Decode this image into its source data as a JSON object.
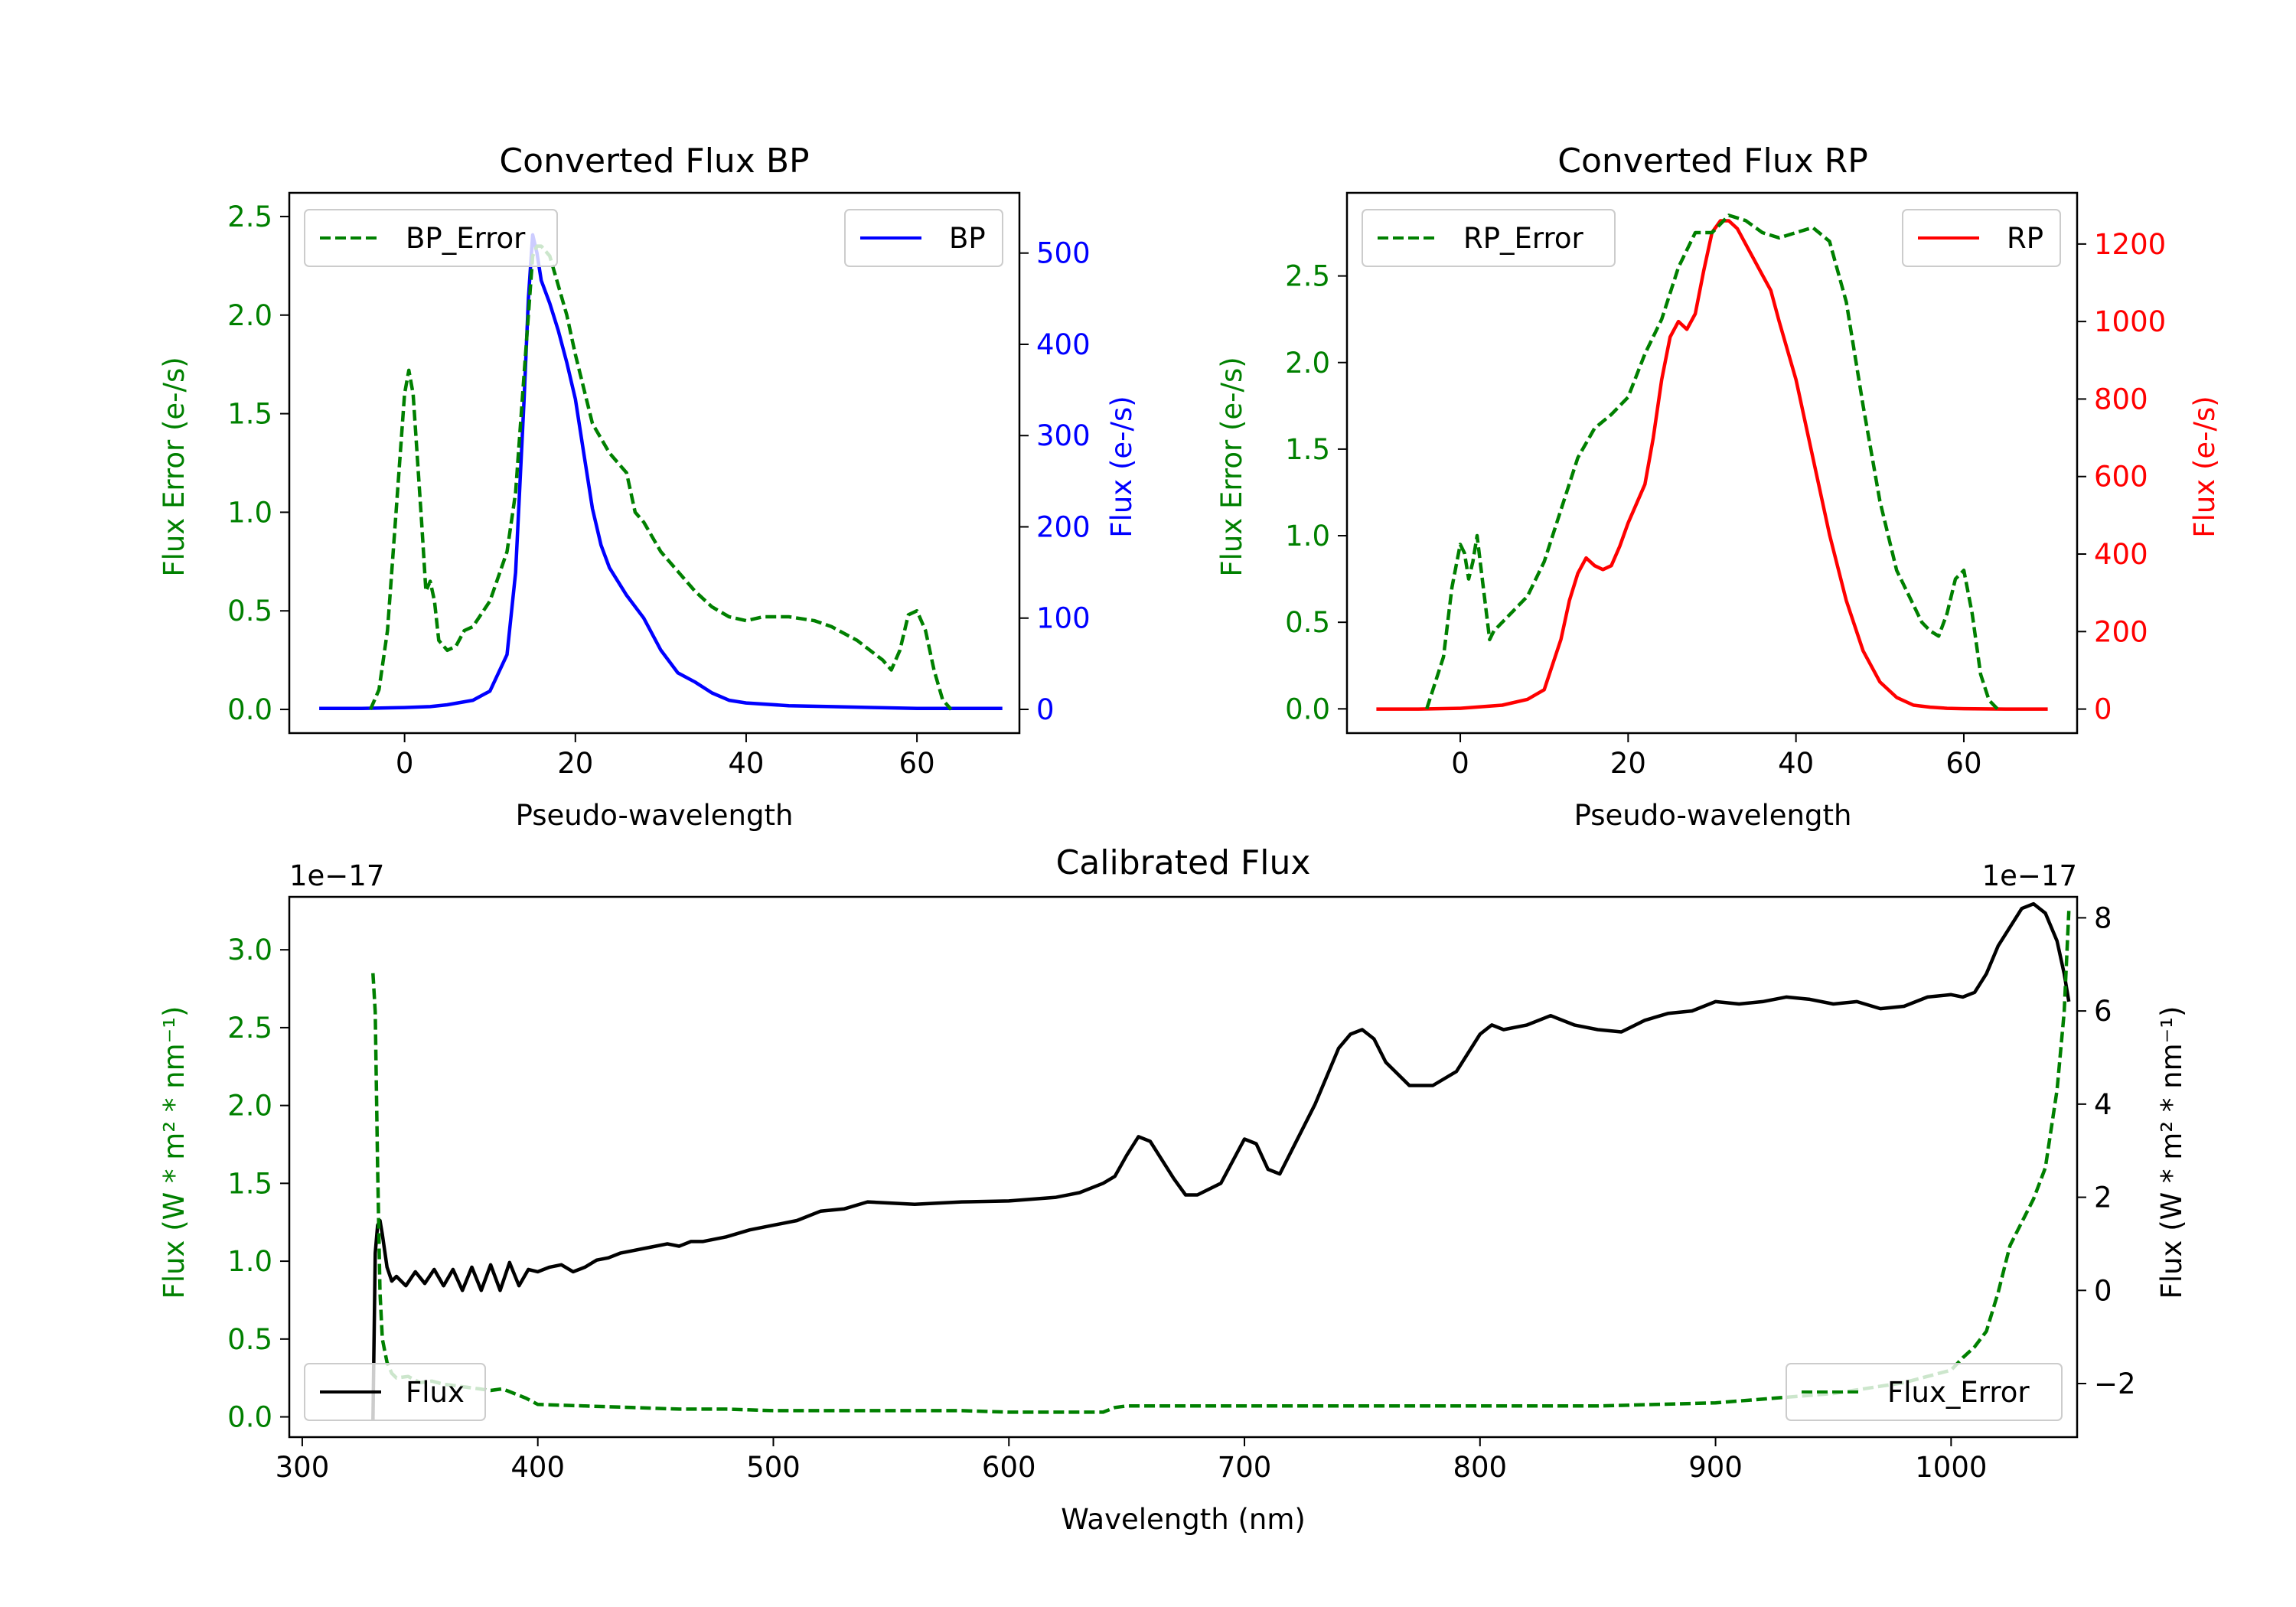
{
  "colors": {
    "bp": "#0000ff",
    "rp": "#ff0000",
    "error": "#008000",
    "flux": "#000000"
  },
  "chart_data": [
    {
      "id": "bp",
      "type": "line",
      "title": "Converted Flux BP",
      "xlabel": "Pseudo-wavelength",
      "ylabel_left": "Flux Error (e-/s)",
      "ylabel_right": "Flux (e-/s)",
      "xlim": [
        -13.5,
        72
      ],
      "ylim_left": [
        -0.12,
        2.62
      ],
      "ylim_right": [
        -26,
        566
      ],
      "xticks": [
        0,
        20,
        40,
        60
      ],
      "yticks_left": [
        0.0,
        0.5,
        1.0,
        1.5,
        2.0,
        2.5
      ],
      "yticks_right": [
        0,
        100,
        200,
        300,
        400,
        500
      ],
      "legend_left": {
        "label": "BP_Error",
        "position": "top-left"
      },
      "legend_right": {
        "label": "BP",
        "position": "top-right"
      },
      "series": [
        {
          "name": "BP",
          "axis": "right",
          "style": "solid",
          "color": "#0000ff",
          "x": [
            -10,
            -5,
            0,
            3,
            5,
            8,
            10,
            12,
            13,
            14,
            14.5,
            15,
            15.5,
            16,
            17,
            18,
            19,
            20,
            21,
            22,
            23,
            24,
            26,
            28,
            30,
            32,
            34,
            36,
            38,
            40,
            45,
            50,
            55,
            60,
            65,
            70
          ],
          "y": [
            1,
            1,
            2,
            3,
            5,
            10,
            20,
            60,
            150,
            340,
            450,
            520,
            500,
            470,
            445,
            415,
            380,
            340,
            280,
            220,
            180,
            155,
            125,
            100,
            65,
            40,
            30,
            18,
            10,
            7,
            4,
            3,
            2,
            1,
            1,
            1
          ]
        },
        {
          "name": "BP_Error",
          "axis": "left",
          "style": "dashed",
          "color": "#008000",
          "x": [
            -4,
            -3,
            -2,
            -1,
            0,
            0.5,
            1,
            2,
            2.5,
            3,
            3.5,
            4,
            5,
            6,
            7,
            8,
            10,
            12,
            13,
            14,
            14.5,
            15,
            15.5,
            16,
            17,
            18,
            19,
            20,
            22,
            24,
            26,
            27,
            28,
            30,
            32,
            34,
            36,
            38,
            40,
            42,
            45,
            48,
            50,
            53,
            56,
            57,
            58,
            59,
            60,
            61,
            62,
            63,
            64
          ],
          "y": [
            0.0,
            0.1,
            0.4,
            1.0,
            1.6,
            1.72,
            1.6,
            0.95,
            0.6,
            0.65,
            0.55,
            0.35,
            0.3,
            0.32,
            0.4,
            0.42,
            0.55,
            0.8,
            1.1,
            1.7,
            2.0,
            2.3,
            2.35,
            2.35,
            2.3,
            2.15,
            2.0,
            1.8,
            1.45,
            1.3,
            1.2,
            1.0,
            0.95,
            0.8,
            0.7,
            0.6,
            0.52,
            0.47,
            0.45,
            0.47,
            0.47,
            0.45,
            0.42,
            0.35,
            0.25,
            0.2,
            0.3,
            0.48,
            0.5,
            0.4,
            0.2,
            0.05,
            0.0
          ]
        }
      ]
    },
    {
      "id": "rp",
      "type": "line",
      "title": "Converted Flux RP",
      "xlabel": "Pseudo-wavelength",
      "ylabel_left": "Flux Error (e-/s)",
      "ylabel_right": "Flux (e-/s)",
      "xlim": [
        -13.5,
        73.5
      ],
      "ylim_left": [
        -0.14,
        2.98
      ],
      "ylim_right": [
        -62,
        1332
      ],
      "xticks": [
        0,
        20,
        40,
        60
      ],
      "yticks_left": [
        0.0,
        0.5,
        1.0,
        1.5,
        2.0,
        2.5
      ],
      "yticks_right": [
        0,
        200,
        400,
        600,
        800,
        1000,
        1200
      ],
      "legend_left": {
        "label": "RP_Error",
        "position": "top-left"
      },
      "legend_right": {
        "label": "RP",
        "position": "top-right"
      },
      "series": [
        {
          "name": "RP",
          "axis": "right",
          "style": "solid",
          "color": "#ff0000",
          "x": [
            -10,
            -5,
            0,
            5,
            8,
            10,
            12,
            13,
            14,
            15,
            16,
            17,
            18,
            19,
            20,
            21,
            22,
            23,
            24,
            25,
            26,
            27,
            28,
            29,
            30,
            31,
            32,
            33,
            34,
            35,
            36,
            37,
            38,
            40,
            42,
            44,
            46,
            48,
            50,
            52,
            54,
            56,
            58,
            60,
            65,
            70
          ],
          "y": [
            0,
            0,
            2,
            10,
            25,
            50,
            180,
            280,
            350,
            390,
            370,
            360,
            370,
            420,
            480,
            530,
            580,
            700,
            850,
            960,
            1000,
            980,
            1020,
            1130,
            1230,
            1260,
            1260,
            1240,
            1200,
            1160,
            1120,
            1080,
            1000,
            850,
            650,
            450,
            280,
            150,
            70,
            30,
            10,
            5,
            2,
            1,
            0,
            0
          ]
        },
        {
          "name": "RP_Error",
          "axis": "left",
          "style": "dashed",
          "color": "#008000",
          "x": [
            -4,
            -2,
            -1,
            0,
            0.5,
            1,
            1.5,
            2,
            2.5,
            3,
            3.5,
            4,
            5,
            6,
            8,
            10,
            12,
            14,
            16,
            18,
            20,
            22,
            24,
            26,
            27,
            28,
            30,
            32,
            34,
            36,
            38,
            40,
            42,
            44,
            46,
            48,
            50,
            52,
            54,
            55,
            56,
            57,
            58,
            59,
            60,
            61,
            62,
            63,
            64
          ],
          "y": [
            0.0,
            0.3,
            0.7,
            0.95,
            0.9,
            0.75,
            0.85,
            1.0,
            0.8,
            0.6,
            0.4,
            0.45,
            0.5,
            0.55,
            0.65,
            0.85,
            1.15,
            1.45,
            1.62,
            1.7,
            1.8,
            2.05,
            2.25,
            2.55,
            2.65,
            2.75,
            2.75,
            2.85,
            2.82,
            2.75,
            2.72,
            2.75,
            2.78,
            2.7,
            2.35,
            1.75,
            1.2,
            0.8,
            0.6,
            0.5,
            0.45,
            0.42,
            0.55,
            0.75,
            0.8,
            0.55,
            0.2,
            0.05,
            0.0
          ]
        }
      ]
    },
    {
      "id": "cal",
      "type": "line",
      "title": "Calibrated Flux",
      "xlabel": "Wavelength (nm)",
      "ylabel_left": "Flux (W * m² * nm⁻¹)",
      "ylabel_right": "Flux (W * m² * nm⁻¹)",
      "offset_left": "1e−17",
      "offset_right": "1e−17",
      "xlim": [
        294.5,
        1053.5
      ],
      "ylim_left": [
        -0.13,
        3.34
      ],
      "ylim_right": [
        -3.15,
        8.45
      ],
      "xticks": [
        300,
        400,
        500,
        600,
        700,
        800,
        900,
        1000
      ],
      "yticks_left": [
        0.0,
        0.5,
        1.0,
        1.5,
        2.0,
        2.5,
        3.0
      ],
      "yticks_right": [
        -2,
        0,
        2,
        4,
        6,
        8
      ],
      "yticks_right_labels": [
        "−2",
        "0",
        "2",
        "4",
        "6",
        "8"
      ],
      "legend_left": {
        "label": "Flux",
        "position": "bottom-left"
      },
      "legend_right": {
        "label": "Flux_Error",
        "position": "bottom-right"
      },
      "series": [
        {
          "name": "Flux",
          "axis": "right",
          "style": "solid",
          "color": "#000000",
          "x": [
            330,
            331,
            332,
            333,
            334,
            336,
            338,
            340,
            344,
            348,
            352,
            356,
            360,
            364,
            368,
            372,
            376,
            380,
            384,
            388,
            392,
            396,
            400,
            405,
            410,
            415,
            420,
            425,
            430,
            435,
            440,
            445,
            450,
            455,
            460,
            465,
            470,
            480,
            490,
            500,
            510,
            520,
            530,
            540,
            560,
            580,
            600,
            620,
            630,
            640,
            645,
            650,
            655,
            660,
            670,
            675,
            680,
            690,
            700,
            705,
            710,
            715,
            720,
            730,
            740,
            745,
            750,
            755,
            760,
            770,
            780,
            790,
            800,
            805,
            810,
            820,
            830,
            840,
            850,
            860,
            870,
            880,
            890,
            900,
            910,
            920,
            930,
            940,
            950,
            960,
            970,
            980,
            990,
            1000,
            1005,
            1010,
            1015,
            1020,
            1025,
            1030,
            1035,
            1040,
            1045,
            1048,
            1050
          ],
          "y": [
            -2.8,
            0.8,
            1.4,
            1.5,
            1.2,
            0.5,
            0.2,
            0.3,
            0.1,
            0.4,
            0.15,
            0.45,
            0.1,
            0.45,
            0.0,
            0.5,
            0.0,
            0.55,
            0.0,
            0.6,
            0.1,
            0.45,
            0.4,
            0.5,
            0.55,
            0.4,
            0.5,
            0.65,
            0.7,
            0.8,
            0.85,
            0.9,
            0.95,
            1.0,
            0.95,
            1.05,
            1.05,
            1.15,
            1.3,
            1.4,
            1.5,
            1.7,
            1.75,
            1.9,
            1.85,
            1.9,
            1.92,
            2.0,
            2.1,
            2.3,
            2.45,
            2.9,
            3.3,
            3.2,
            2.4,
            2.05,
            2.05,
            2.3,
            3.25,
            3.15,
            2.6,
            2.5,
            3.0,
            4.0,
            5.2,
            5.5,
            5.6,
            5.4,
            4.9,
            4.4,
            4.4,
            4.7,
            5.5,
            5.7,
            5.6,
            5.7,
            5.9,
            5.7,
            5.6,
            5.55,
            5.8,
            5.95,
            6.0,
            6.2,
            6.15,
            6.2,
            6.3,
            6.25,
            6.15,
            6.2,
            6.05,
            6.1,
            6.3,
            6.35,
            6.3,
            6.4,
            6.8,
            7.4,
            7.8,
            8.2,
            8.3,
            8.1,
            7.5,
            6.8,
            6.2
          ]
        },
        {
          "name": "Flux_Error",
          "axis": "left",
          "style": "dashed",
          "color": "#008000",
          "x": [
            330,
            331,
            332,
            333,
            334,
            336,
            338,
            340,
            345,
            350,
            355,
            360,
            365,
            370,
            375,
            380,
            385,
            390,
            395,
            400,
            420,
            440,
            460,
            480,
            500,
            520,
            540,
            560,
            580,
            600,
            620,
            640,
            645,
            650,
            660,
            700,
            750,
            800,
            850,
            900,
            950,
            980,
            1000,
            1005,
            1010,
            1015,
            1018,
            1020,
            1025,
            1030,
            1035,
            1040,
            1045,
            1048,
            1050
          ],
          "y": [
            2.85,
            2.6,
            1.6,
            0.8,
            0.5,
            0.35,
            0.28,
            0.25,
            0.26,
            0.22,
            0.23,
            0.21,
            0.2,
            0.19,
            0.18,
            0.17,
            0.18,
            0.15,
            0.12,
            0.08,
            0.07,
            0.06,
            0.05,
            0.05,
            0.04,
            0.04,
            0.04,
            0.04,
            0.04,
            0.03,
            0.03,
            0.03,
            0.06,
            0.07,
            0.07,
            0.07,
            0.07,
            0.07,
            0.07,
            0.09,
            0.15,
            0.22,
            0.3,
            0.38,
            0.45,
            0.55,
            0.7,
            0.8,
            1.1,
            1.25,
            1.4,
            1.6,
            2.1,
            2.6,
            3.25
          ]
        }
      ]
    }
  ]
}
